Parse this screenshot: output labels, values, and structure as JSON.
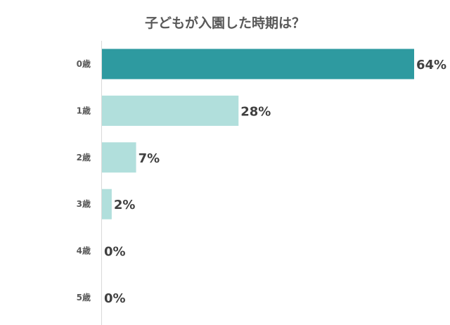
{
  "chart_data": {
    "type": "bar",
    "orientation": "horizontal",
    "title": "子どもが入園した時期は？",
    "categories": [
      "0歳",
      "1歳",
      "2歳",
      "3歳",
      "4歳",
      "5歳"
    ],
    "values": [
      64,
      28,
      7,
      2,
      0,
      0
    ],
    "value_labels": [
      "64%",
      "28%",
      "7%",
      "2%",
      "0%",
      "0%"
    ],
    "unit": "%",
    "xlim": [
      0,
      64
    ],
    "grid": false,
    "legend": "none",
    "colors": {
      "highlight": "#2e9aa0",
      "default": "#b1dfdc",
      "axis": "#d9d9d9",
      "title": "#595959",
      "category_text": "#595959",
      "value_text": "#404040"
    },
    "highlight_index": 0
  }
}
